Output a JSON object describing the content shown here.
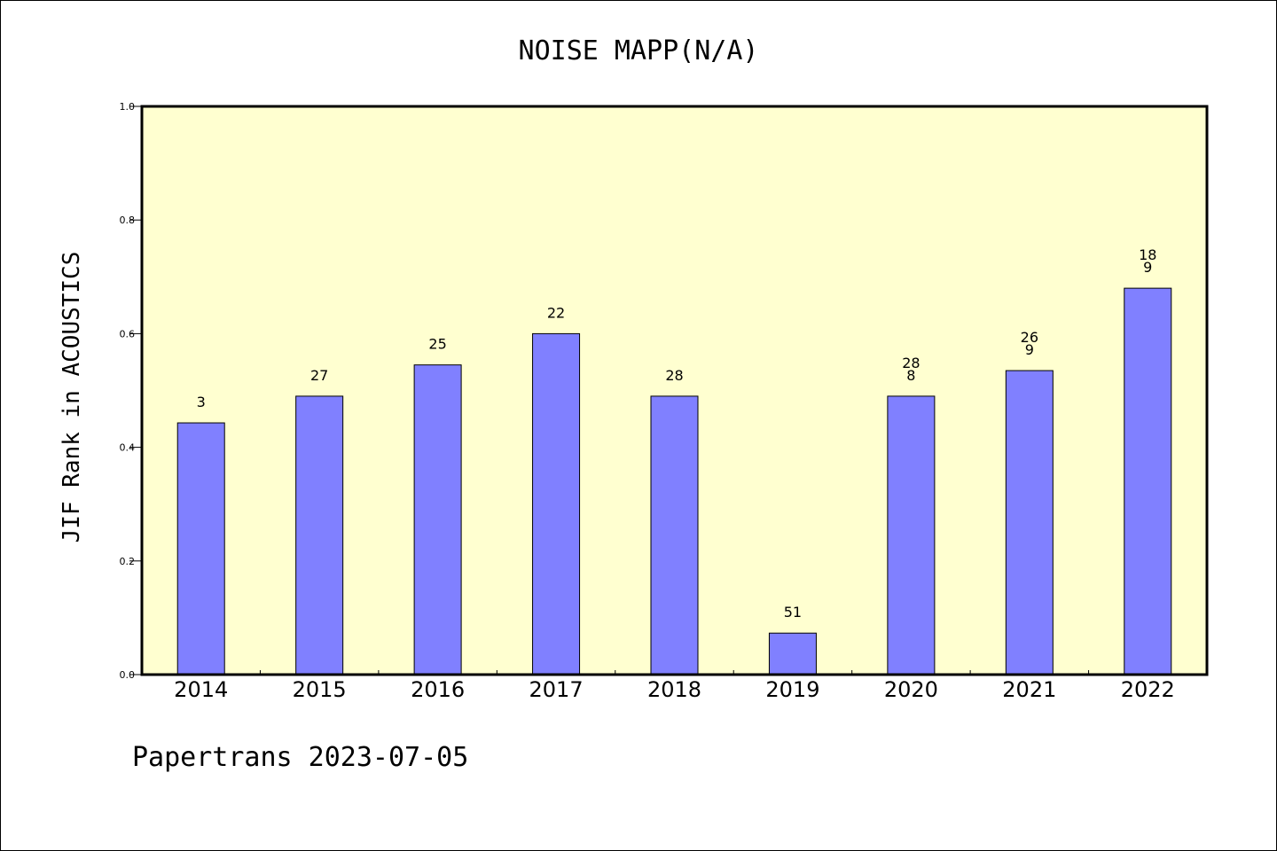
{
  "chart_data": {
    "type": "bar",
    "title": "NOISE MAPP(N/A)",
    "ylabel": "JIF Rank in ACOUSTICS",
    "xlabel": "",
    "ylim": [
      0,
      1.0
    ],
    "yticks": [
      "0.0",
      "0.2",
      "0.4",
      "0.6",
      "0.8",
      "1.0"
    ],
    "categories": [
      "2014",
      "2015",
      "2016",
      "2017",
      "2018",
      "2019",
      "2020",
      "2021",
      "2022"
    ],
    "values": [
      0.443,
      0.49,
      0.545,
      0.6,
      0.49,
      0.073,
      0.49,
      0.535,
      0.68
    ],
    "data_labels": [
      [
        "3"
      ],
      [
        "27"
      ],
      [
        "25"
      ],
      [
        "22"
      ],
      [
        "28"
      ],
      [
        "51"
      ],
      [
        "28",
        "8"
      ],
      [
        "26",
        "9"
      ],
      [
        "18",
        "9"
      ]
    ],
    "grid": false,
    "colors": {
      "bar": "#8080ff",
      "bar_edge": "#000000",
      "plot_background": "#ffffd0",
      "axes": "#000000"
    }
  },
  "footer": "Papertrans 2023-07-05"
}
